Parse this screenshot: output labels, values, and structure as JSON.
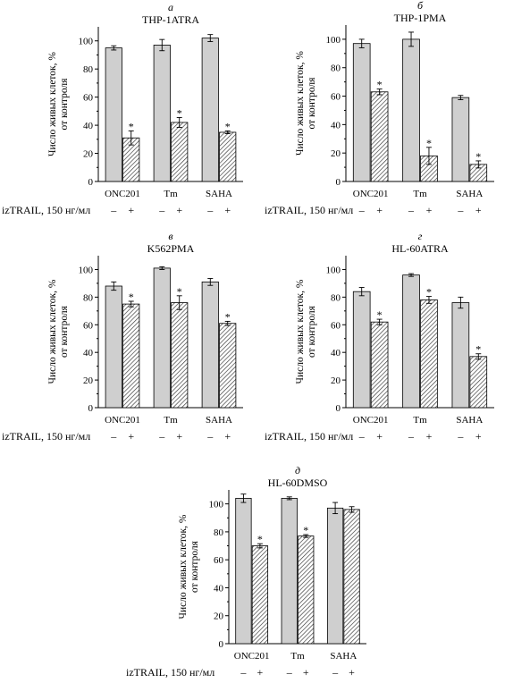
{
  "chart_data": [
    {
      "type": "bar",
      "panel_letter": "а",
      "title": "THP-1ATRA",
      "ylabel_line1": "Число живых клеток, %",
      "ylabel_line2": "от контроля",
      "ylim": [
        0,
        110
      ],
      "yticks": [
        "0",
        "20",
        "40",
        "60",
        "80",
        "100"
      ],
      "categories": [
        "ONC201",
        "Tm",
        "SAHA"
      ],
      "treatment_label": "izTRAIL, 150 нг/мл",
      "treatment_signs": [
        "–",
        "+"
      ],
      "series": [
        {
          "values": [
            95,
            97,
            102
          ],
          "errors": [
            1.5,
            4,
            2.5
          ],
          "significant": [
            false,
            false,
            false
          ]
        },
        {
          "values": [
            31,
            42,
            35
          ],
          "errors": [
            5,
            3.5,
            1
          ],
          "significant": [
            true,
            true,
            true
          ]
        }
      ],
      "star_symbol": "*"
    },
    {
      "type": "bar",
      "panel_letter": "б",
      "title": "THP-1PMA",
      "ylabel_line1": "Число живых клеток, %",
      "ylabel_line2": "от контроля",
      "ylim": [
        0,
        110
      ],
      "yticks": [
        "0",
        "20",
        "40",
        "60",
        "80",
        "100"
      ],
      "categories": [
        "ONC201",
        "Tm",
        "SAHA"
      ],
      "treatment_label": "izTRAIL, 150 нг/мл",
      "treatment_signs": [
        "–",
        "+"
      ],
      "series": [
        {
          "values": [
            97,
            100,
            59
          ],
          "errors": [
            3,
            5,
            1.5
          ],
          "significant": [
            false,
            false,
            false
          ]
        },
        {
          "values": [
            63,
            18,
            12
          ],
          "errors": [
            2,
            6,
            2.5
          ],
          "significant": [
            true,
            true,
            true
          ]
        }
      ],
      "star_symbol": "*"
    },
    {
      "type": "bar",
      "panel_letter": "в",
      "title": "K562PMA",
      "ylabel_line1": "Число живых клеток, %",
      "ylabel_line2": "от контроля",
      "ylim": [
        0,
        110
      ],
      "yticks": [
        "0",
        "20",
        "40",
        "60",
        "80",
        "100"
      ],
      "categories": [
        "ONC201",
        "Tm",
        "SAHA"
      ],
      "treatment_label": "izTRAIL, 150 нг/мл",
      "treatment_signs": [
        "–",
        "+"
      ],
      "series": [
        {
          "values": [
            88,
            101,
            91
          ],
          "errors": [
            3,
            1,
            2.5
          ],
          "significant": [
            false,
            false,
            false
          ]
        },
        {
          "values": [
            75,
            76,
            61
          ],
          "errors": [
            2,
            5,
            1.5
          ],
          "significant": [
            true,
            true,
            true
          ]
        }
      ],
      "star_symbol": "*"
    },
    {
      "type": "bar",
      "panel_letter": "г",
      "title": "HL-60ATRA",
      "ylabel_line1": "Число живых клеток, %",
      "ylabel_line2": "от контроля",
      "ylim": [
        0,
        110
      ],
      "yticks": [
        "0",
        "20",
        "40",
        "60",
        "80",
        "100"
      ],
      "categories": [
        "ONC201",
        "Tm",
        "SAHA"
      ],
      "treatment_label": "izTRAIL, 150 нг/мл",
      "treatment_signs": [
        "–",
        "+"
      ],
      "series": [
        {
          "values": [
            84,
            96,
            76
          ],
          "errors": [
            3,
            1,
            4
          ],
          "significant": [
            false,
            false,
            false
          ]
        },
        {
          "values": [
            62,
            78,
            37
          ],
          "errors": [
            2,
            2.5,
            2
          ],
          "significant": [
            true,
            true,
            true
          ]
        }
      ],
      "star_symbol": "*"
    },
    {
      "type": "bar",
      "panel_letter": "д",
      "title": "HL-60DMSO",
      "ylabel_line1": "Число живых клеток, %",
      "ylabel_line2": "от контроля",
      "ylim": [
        0,
        110
      ],
      "yticks": [
        "0",
        "20",
        "40",
        "60",
        "80",
        "100"
      ],
      "categories": [
        "ONC201",
        "Tm",
        "SAHA"
      ],
      "treatment_label": "izTRAIL, 150 нг/мл",
      "treatment_signs": [
        "–",
        "+"
      ],
      "series": [
        {
          "values": [
            104,
            104,
            97
          ],
          "errors": [
            3,
            1,
            4
          ],
          "significant": [
            false,
            false,
            false
          ]
        },
        {
          "values": [
            70,
            77,
            96
          ],
          "errors": [
            1.5,
            1,
            2
          ],
          "significant": [
            true,
            true,
            false
          ]
        }
      ],
      "star_symbol": "*"
    }
  ]
}
